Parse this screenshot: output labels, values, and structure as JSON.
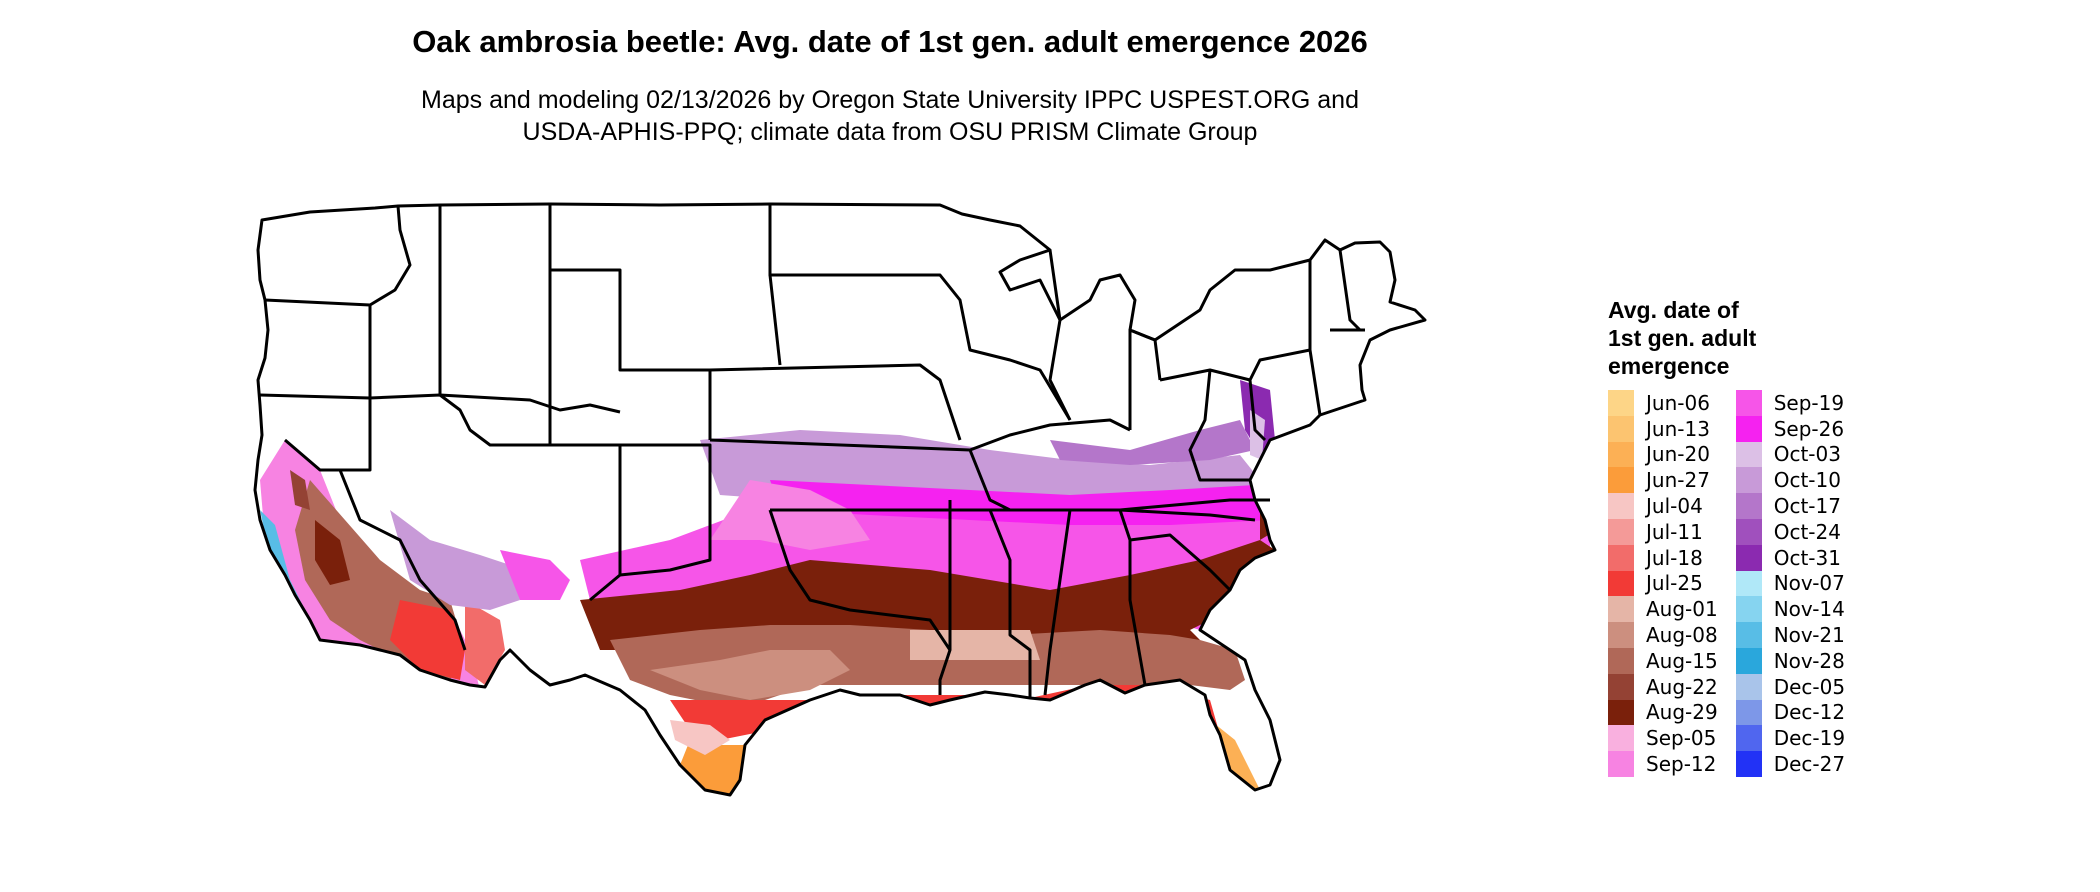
{
  "title": "Oak ambrosia beetle: Avg. date of 1st gen. adult emergence 2026",
  "subtitle_lines": [
    "Maps and modeling 02/13/2026 by Oregon State University IPPC USPEST.ORG and",
    "USDA-APHIS-PPQ; climate data from OSU PRISM Climate Group"
  ],
  "legend": {
    "title_lines": [
      "Avg. date of",
      "1st gen. adult",
      "emergence"
    ],
    "columns": [
      [
        {
          "label": "Jun-06",
          "color": "#fdd587"
        },
        {
          "label": "Jun-13",
          "color": "#fcc470"
        },
        {
          "label": "Jun-20",
          "color": "#fcb055"
        },
        {
          "label": "Jun-27",
          "color": "#fb9c3a"
        },
        {
          "label": "Jul-04",
          "color": "#f7c6c4"
        },
        {
          "label": "Jul-11",
          "color": "#f49a98"
        },
        {
          "label": "Jul-18",
          "color": "#f26c6a"
        },
        {
          "label": "Jul-25",
          "color": "#f23a36"
        },
        {
          "label": "Aug-01",
          "color": "#e5b5a7"
        },
        {
          "label": "Aug-08",
          "color": "#cc8f7f"
        },
        {
          "label": "Aug-15",
          "color": "#b06858"
        },
        {
          "label": "Aug-22",
          "color": "#944234"
        },
        {
          "label": "Aug-29",
          "color": "#7a200b"
        },
        {
          "label": "Sep-05",
          "color": "#f9b0df"
        },
        {
          "label": "Sep-12",
          "color": "#f783e2"
        }
      ],
      [
        {
          "label": "Sep-19",
          "color": "#f655e8"
        },
        {
          "label": "Sep-26",
          "color": "#f522f0"
        },
        {
          "label": "Oct-03",
          "color": "#dcc0e6"
        },
        {
          "label": "Oct-10",
          "color": "#c89ad8"
        },
        {
          "label": "Oct-17",
          "color": "#b476ca"
        },
        {
          "label": "Oct-24",
          "color": "#a050bd"
        },
        {
          "label": "Oct-31",
          "color": "#8b2ab0"
        },
        {
          "label": "Nov-07",
          "color": "#b0e8f8"
        },
        {
          "label": "Nov-14",
          "color": "#86d4f0"
        },
        {
          "label": "Nov-21",
          "color": "#58bde6"
        },
        {
          "label": "Nov-28",
          "color": "#2aa7dc"
        },
        {
          "label": "Dec-05",
          "color": "#a9c4ea"
        },
        {
          "label": "Dec-12",
          "color": "#7d97e8"
        },
        {
          "label": "Dec-19",
          "color": "#5066ef"
        },
        {
          "label": "Dec-27",
          "color": "#2232f6"
        }
      ]
    ]
  }
}
